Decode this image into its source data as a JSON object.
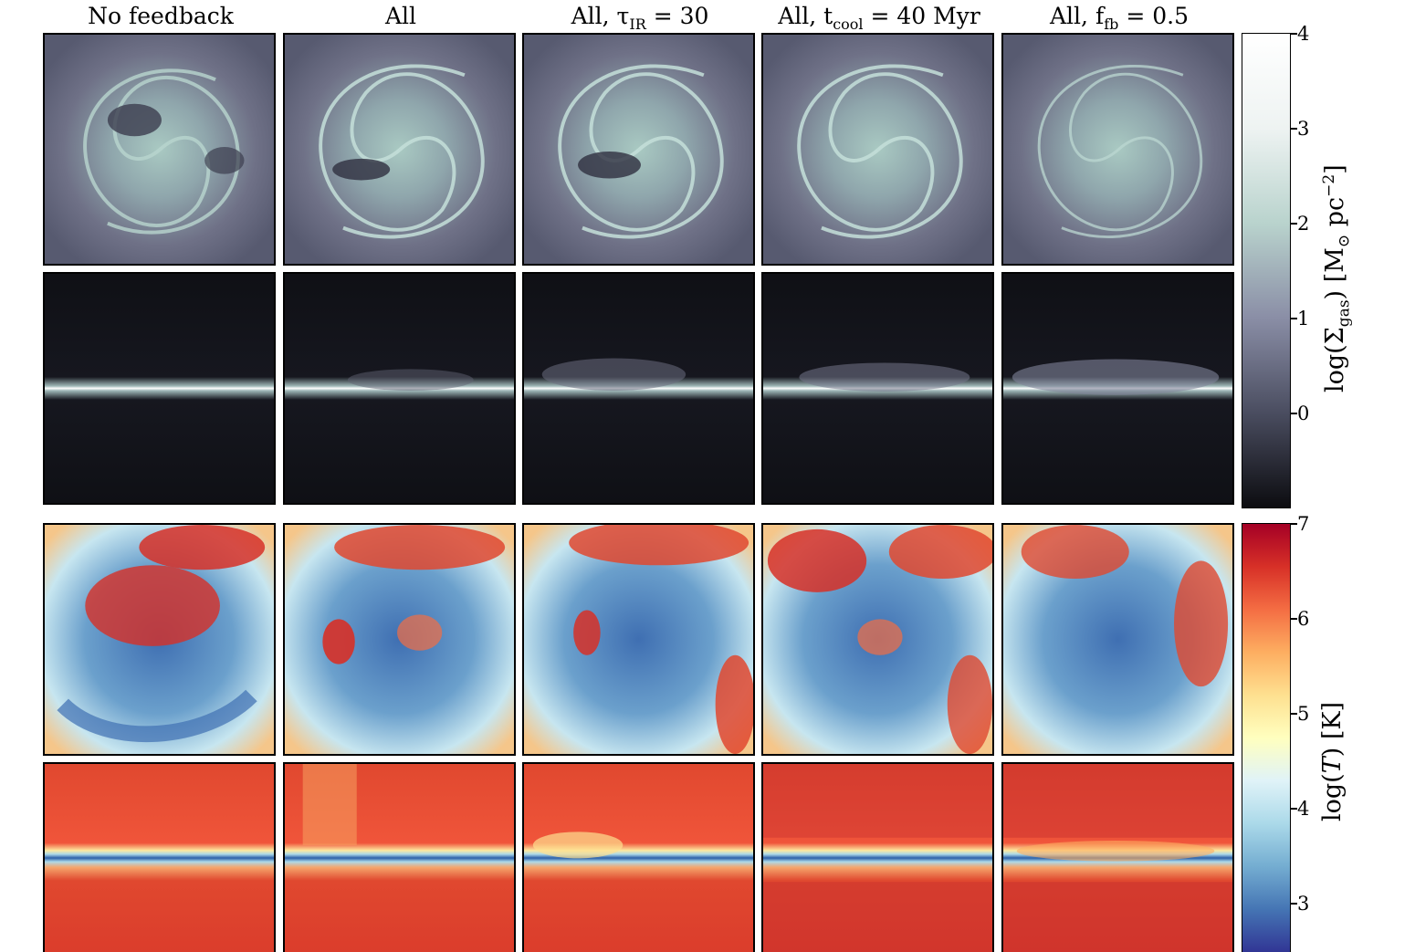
{
  "columns": [
    {
      "title_main": "No feedback",
      "title_sub": "",
      "title_rest": ""
    },
    {
      "title_main": "All",
      "title_sub": "",
      "title_rest": ""
    },
    {
      "title_main": "All, τ",
      "title_sub": "IR",
      "title_rest": " = 30"
    },
    {
      "title_main": "All, t",
      "title_sub": "cool",
      "title_rest": " = 40 Myr"
    },
    {
      "title_main": "All, f",
      "title_sub": "fb",
      "title_rest": " = 0.5"
    }
  ],
  "colorbars": {
    "density": {
      "label_main": "log(Σ",
      "label_sub": "gas",
      "label_mid": ")  [M",
      "label_sub2": "⊙",
      "label_rest": " pc",
      "label_sup": "−2",
      "label_end": "]",
      "ticks": [
        "4",
        "3",
        "2",
        "1",
        "0"
      ],
      "colors": [
        "#ffffff",
        "#eef3f2",
        "#b9d3cd",
        "#8a8ea6",
        "#4a4d60",
        "#0c0c10"
      ]
    },
    "temperature": {
      "label_main": "log(",
      "label_italic": "T",
      "label_rest": ") [K]",
      "ticks": [
        "7",
        "6",
        "5",
        "4",
        "3"
      ],
      "colors": [
        "#a50026",
        "#d73027",
        "#f46d43",
        "#fdae61",
        "#fee090",
        "#ffffbf",
        "#e0f3f8",
        "#abd9e9",
        "#74add1",
        "#4575b4",
        "#313695"
      ]
    }
  },
  "rows": [
    "gas-face-on",
    "gas-edge-on",
    "temperature-face-on",
    "temperature-edge-on"
  ]
}
